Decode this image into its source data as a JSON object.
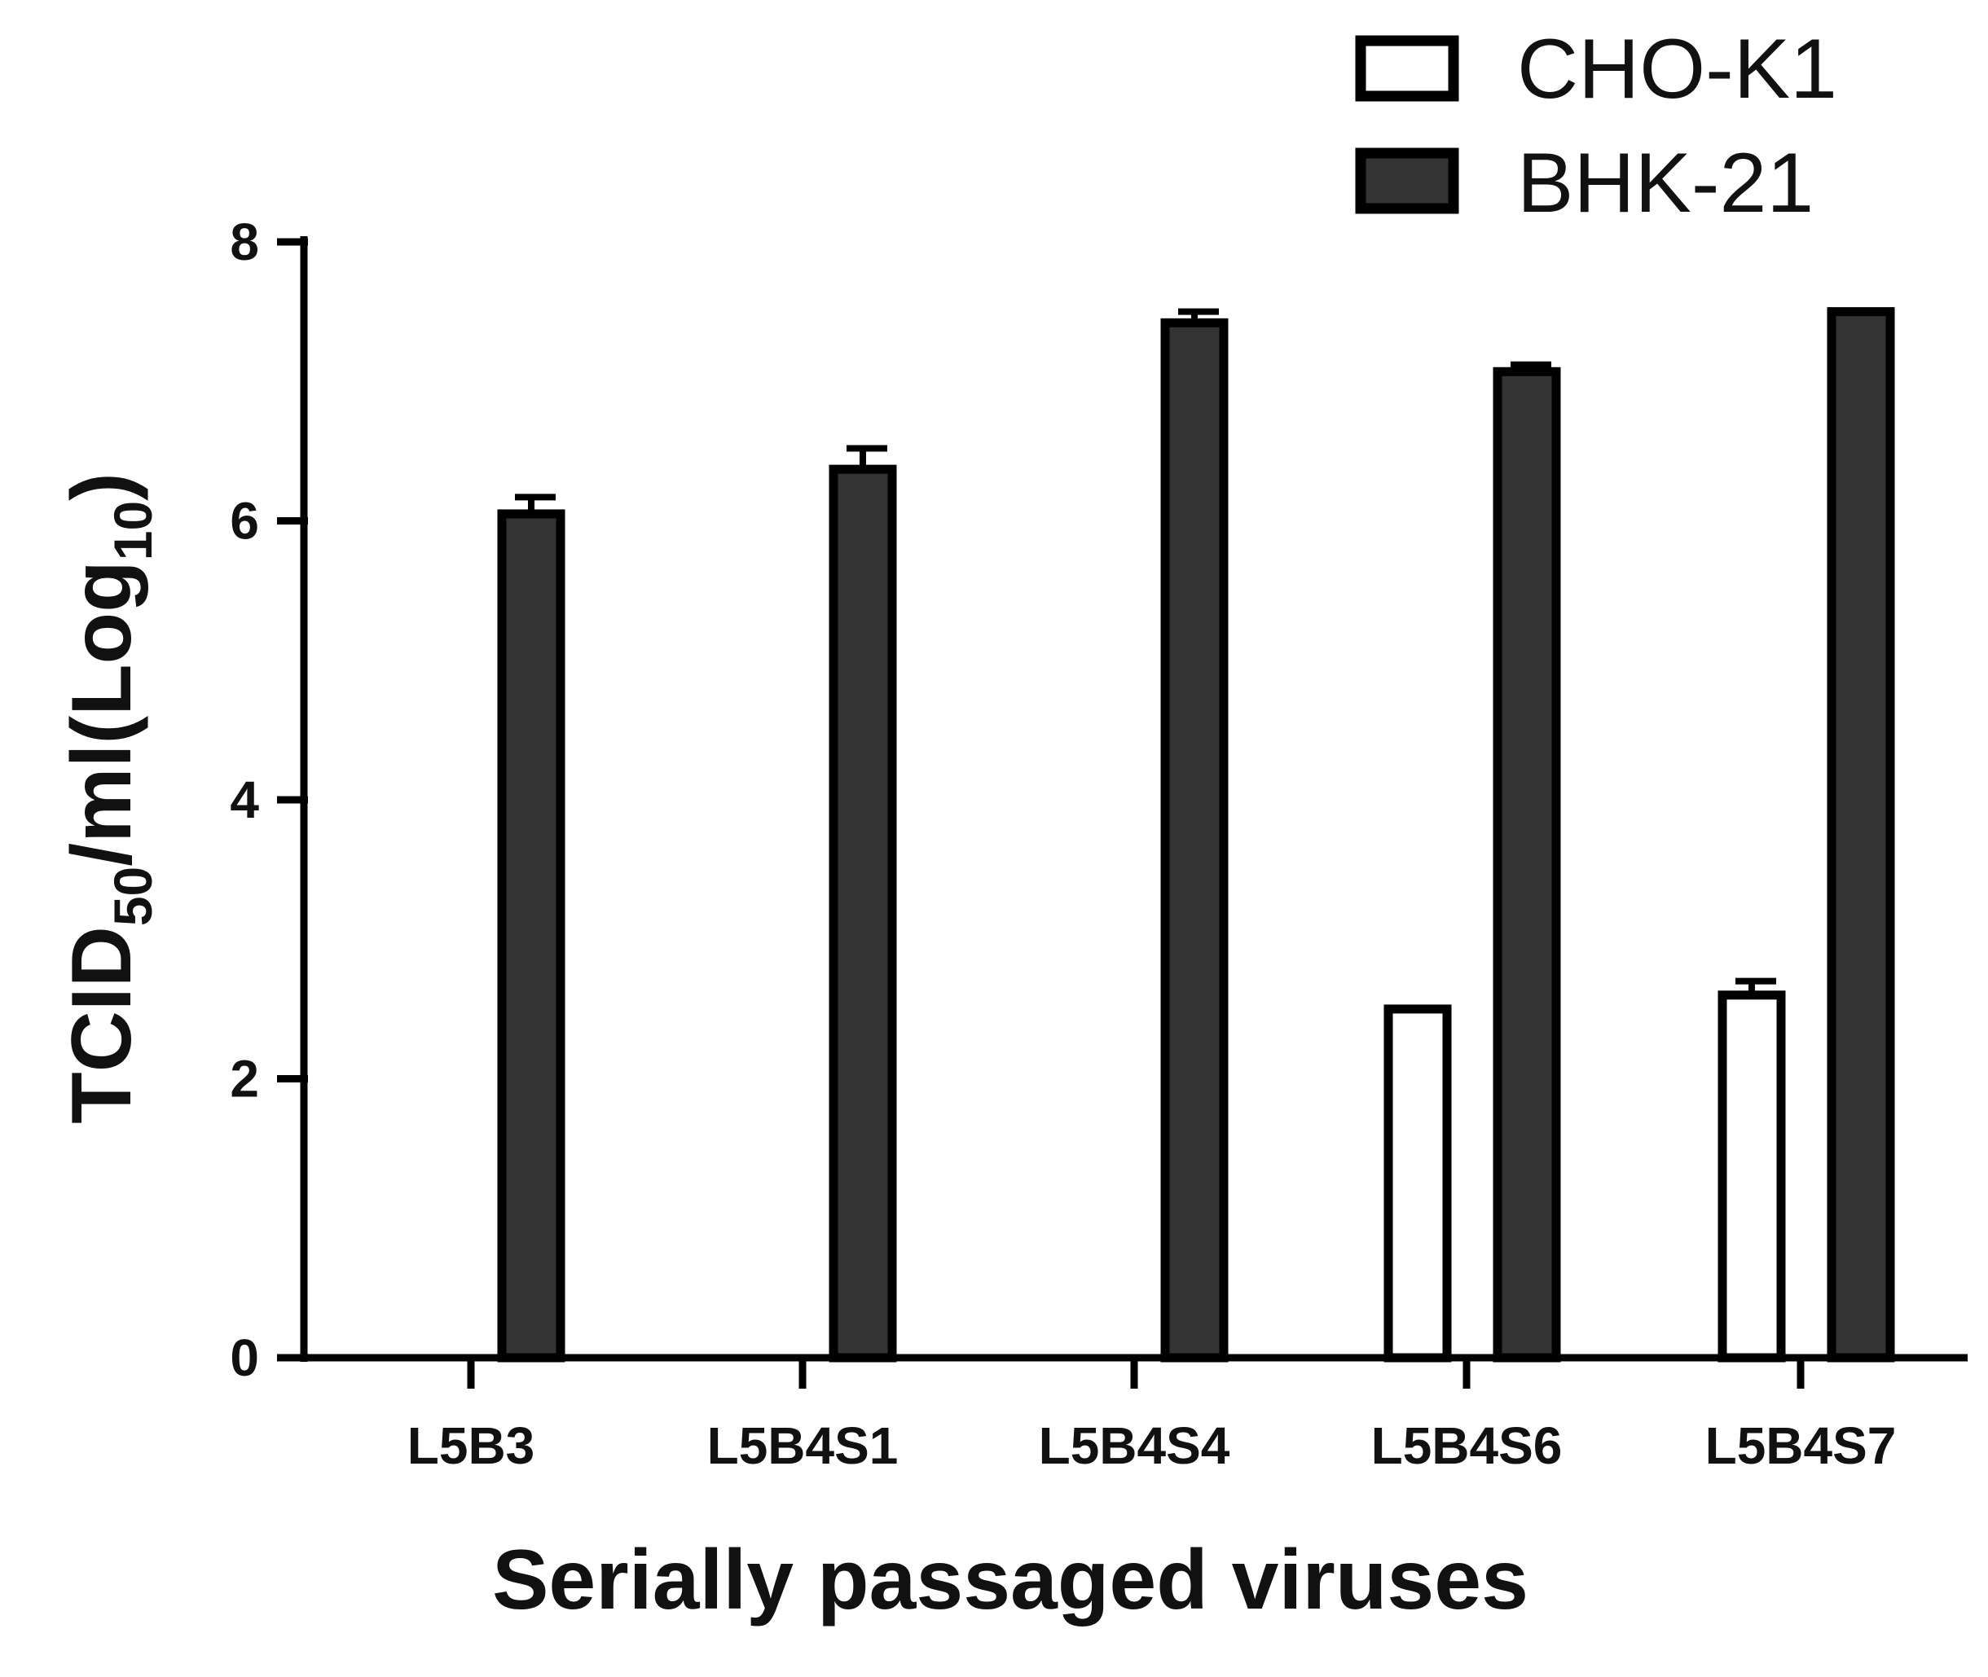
{
  "chart_data": {
    "type": "bar",
    "categories": [
      "L5B3",
      "L5B4S1",
      "L5B4S4",
      "L5B4S6",
      "L5B4S7"
    ],
    "series": [
      {
        "name": "CHO-K1",
        "values": [
          0,
          0,
          0,
          2.5,
          2.6
        ],
        "errors": [
          0,
          0,
          0,
          0,
          0.1
        ],
        "color": "#ffffff"
      },
      {
        "name": "BHK-21",
        "values": [
          6.05,
          6.37,
          7.42,
          7.07,
          7.5
        ],
        "errors": [
          0.12,
          0.15,
          0.08,
          0.05,
          0
        ],
        "color": "#333333"
      }
    ],
    "xlabel": "Serially passaged viruses",
    "ylabel": {
      "parts": [
        "TCID",
        "50",
        "/ml(Log",
        "10",
        ")"
      ]
    },
    "ylim": [
      0,
      8
    ],
    "yticks": [
      "0",
      "2",
      "4",
      "6",
      "8"
    ],
    "legend_position": "top-right",
    "grid": false
  }
}
